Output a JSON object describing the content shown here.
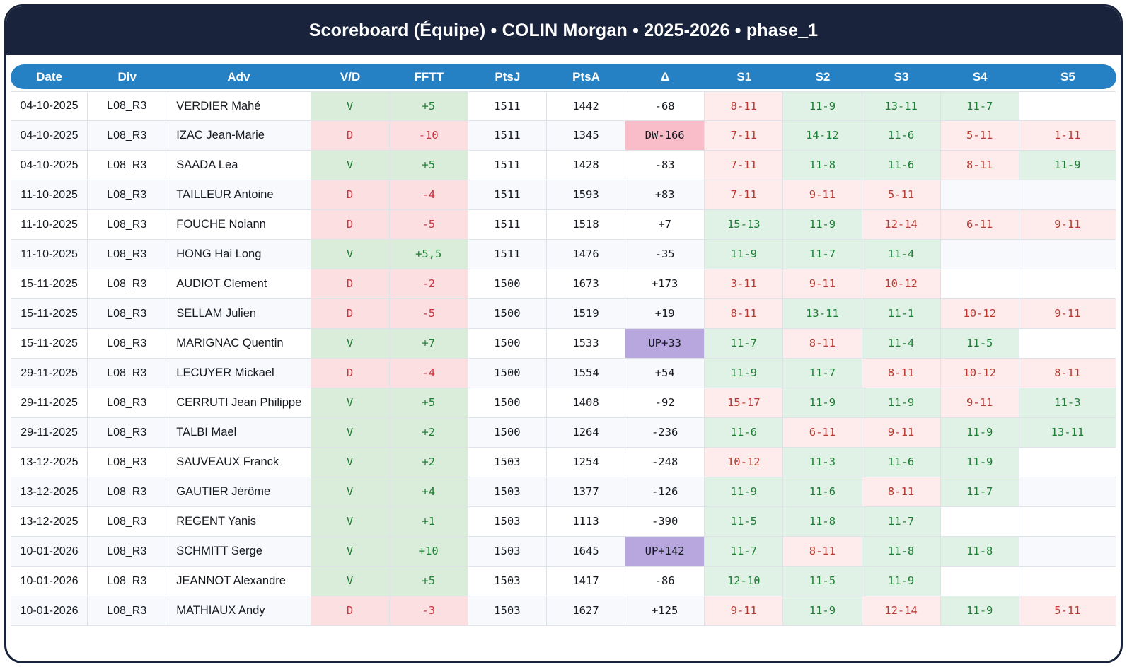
{
  "title": "Scoreboard (Équipe) • COLIN Morgan • 2025-2026 • phase_1",
  "colors": {
    "frame_navy": "#19233B",
    "header_blue": "#2581C4",
    "win_bg": "#d9edda",
    "loss_bg": "#fcdfe1",
    "set_win_bg": "#e0f1e6",
    "set_loss_bg": "#fdeceb",
    "win_text": "#1e7e34",
    "loss_text": "#cc3340",
    "delta_down_bg": "#f9bdc9",
    "delta_up_bg": "#b7a7de",
    "stripe_bg": "#f7f9fc"
  },
  "table": {
    "columns": [
      "Date",
      "Div",
      "Adv",
      "V/D",
      "FFTT",
      "PtsJ",
      "PtsA",
      "Δ",
      "S1",
      "S2",
      "S3",
      "S4",
      "S5"
    ],
    "rows": [
      {
        "date": "04-10-2025",
        "div": "L08_R3",
        "adv": "VERDIER Mahé",
        "vd": "V",
        "fftt": "+5",
        "ptsj": "1511",
        "ptsa": "1442",
        "delta": "-68",
        "delta_type": "plain",
        "sets": [
          {
            "v": "8-11",
            "r": "l"
          },
          {
            "v": "11-9",
            "r": "w"
          },
          {
            "v": "13-11",
            "r": "w"
          },
          {
            "v": "11-7",
            "r": "w"
          },
          null
        ]
      },
      {
        "date": "04-10-2025",
        "div": "L08_R3",
        "adv": "IZAC Jean-Marie",
        "vd": "D",
        "fftt": "-10",
        "ptsj": "1511",
        "ptsa": "1345",
        "delta": "DW-166",
        "delta_type": "down",
        "sets": [
          {
            "v": "7-11",
            "r": "l"
          },
          {
            "v": "14-12",
            "r": "w"
          },
          {
            "v": "11-6",
            "r": "w"
          },
          {
            "v": "5-11",
            "r": "l"
          },
          {
            "v": "1-11",
            "r": "l"
          }
        ]
      },
      {
        "date": "04-10-2025",
        "div": "L08_R3",
        "adv": "SAADA Lea",
        "vd": "V",
        "fftt": "+5",
        "ptsj": "1511",
        "ptsa": "1428",
        "delta": "-83",
        "delta_type": "plain",
        "sets": [
          {
            "v": "7-11",
            "r": "l"
          },
          {
            "v": "11-8",
            "r": "w"
          },
          {
            "v": "11-6",
            "r": "w"
          },
          {
            "v": "8-11",
            "r": "l"
          },
          {
            "v": "11-9",
            "r": "w"
          }
        ]
      },
      {
        "date": "11-10-2025",
        "div": "L08_R3",
        "adv": "TAILLEUR Antoine",
        "vd": "D",
        "fftt": "-4",
        "ptsj": "1511",
        "ptsa": "1593",
        "delta": "+83",
        "delta_type": "plain",
        "sets": [
          {
            "v": "7-11",
            "r": "l"
          },
          {
            "v": "9-11",
            "r": "l"
          },
          {
            "v": "5-11",
            "r": "l"
          },
          null,
          null
        ]
      },
      {
        "date": "11-10-2025",
        "div": "L08_R3",
        "adv": "FOUCHE Nolann",
        "vd": "D",
        "fftt": "-5",
        "ptsj": "1511",
        "ptsa": "1518",
        "delta": "+7",
        "delta_type": "plain",
        "sets": [
          {
            "v": "15-13",
            "r": "w"
          },
          {
            "v": "11-9",
            "r": "w"
          },
          {
            "v": "12-14",
            "r": "l"
          },
          {
            "v": "6-11",
            "r": "l"
          },
          {
            "v": "9-11",
            "r": "l"
          }
        ]
      },
      {
        "date": "11-10-2025",
        "div": "L08_R3",
        "adv": "HONG Hai Long",
        "vd": "V",
        "fftt": "+5,5",
        "ptsj": "1511",
        "ptsa": "1476",
        "delta": "-35",
        "delta_type": "plain",
        "sets": [
          {
            "v": "11-9",
            "r": "w"
          },
          {
            "v": "11-7",
            "r": "w"
          },
          {
            "v": "11-4",
            "r": "w"
          },
          null,
          null
        ]
      },
      {
        "date": "15-11-2025",
        "div": "L08_R3",
        "adv": "AUDIOT Clement",
        "vd": "D",
        "fftt": "-2",
        "ptsj": "1500",
        "ptsa": "1673",
        "delta": "+173",
        "delta_type": "plain",
        "sets": [
          {
            "v": "3-11",
            "r": "l"
          },
          {
            "v": "9-11",
            "r": "l"
          },
          {
            "v": "10-12",
            "r": "l"
          },
          null,
          null
        ]
      },
      {
        "date": "15-11-2025",
        "div": "L08_R3",
        "adv": "SELLAM Julien",
        "vd": "D",
        "fftt": "-5",
        "ptsj": "1500",
        "ptsa": "1519",
        "delta": "+19",
        "delta_type": "plain",
        "sets": [
          {
            "v": "8-11",
            "r": "l"
          },
          {
            "v": "13-11",
            "r": "w"
          },
          {
            "v": "11-1",
            "r": "w"
          },
          {
            "v": "10-12",
            "r": "l"
          },
          {
            "v": "9-11",
            "r": "l"
          }
        ]
      },
      {
        "date": "15-11-2025",
        "div": "L08_R3",
        "adv": "MARIGNAC Quentin",
        "vd": "V",
        "fftt": "+7",
        "ptsj": "1500",
        "ptsa": "1533",
        "delta": "UP+33",
        "delta_type": "up",
        "sets": [
          {
            "v": "11-7",
            "r": "w"
          },
          {
            "v": "8-11",
            "r": "l"
          },
          {
            "v": "11-4",
            "r": "w"
          },
          {
            "v": "11-5",
            "r": "w"
          },
          null
        ]
      },
      {
        "date": "29-11-2025",
        "div": "L08_R3",
        "adv": "LECUYER Mickael",
        "vd": "D",
        "fftt": "-4",
        "ptsj": "1500",
        "ptsa": "1554",
        "delta": "+54",
        "delta_type": "plain",
        "sets": [
          {
            "v": "11-9",
            "r": "w"
          },
          {
            "v": "11-7",
            "r": "w"
          },
          {
            "v": "8-11",
            "r": "l"
          },
          {
            "v": "10-12",
            "r": "l"
          },
          {
            "v": "8-11",
            "r": "l"
          }
        ]
      },
      {
        "date": "29-11-2025",
        "div": "L08_R3",
        "adv": "CERRUTI Jean Philippe",
        "vd": "V",
        "fftt": "+5",
        "ptsj": "1500",
        "ptsa": "1408",
        "delta": "-92",
        "delta_type": "plain",
        "sets": [
          {
            "v": "15-17",
            "r": "l"
          },
          {
            "v": "11-9",
            "r": "w"
          },
          {
            "v": "11-9",
            "r": "w"
          },
          {
            "v": "9-11",
            "r": "l"
          },
          {
            "v": "11-3",
            "r": "w"
          }
        ]
      },
      {
        "date": "29-11-2025",
        "div": "L08_R3",
        "adv": "TALBI Mael",
        "vd": "V",
        "fftt": "+2",
        "ptsj": "1500",
        "ptsa": "1264",
        "delta": "-236",
        "delta_type": "plain",
        "sets": [
          {
            "v": "11-6",
            "r": "w"
          },
          {
            "v": "6-11",
            "r": "l"
          },
          {
            "v": "9-11",
            "r": "l"
          },
          {
            "v": "11-9",
            "r": "w"
          },
          {
            "v": "13-11",
            "r": "w"
          }
        ]
      },
      {
        "date": "13-12-2025",
        "div": "L08_R3",
        "adv": "SAUVEAUX Franck",
        "vd": "V",
        "fftt": "+2",
        "ptsj": "1503",
        "ptsa": "1254",
        "delta": "-248",
        "delta_type": "plain",
        "sets": [
          {
            "v": "10-12",
            "r": "l"
          },
          {
            "v": "11-3",
            "r": "w"
          },
          {
            "v": "11-6",
            "r": "w"
          },
          {
            "v": "11-9",
            "r": "w"
          },
          null
        ]
      },
      {
        "date": "13-12-2025",
        "div": "L08_R3",
        "adv": "GAUTIER Jérôme",
        "vd": "V",
        "fftt": "+4",
        "ptsj": "1503",
        "ptsa": "1377",
        "delta": "-126",
        "delta_type": "plain",
        "sets": [
          {
            "v": "11-9",
            "r": "w"
          },
          {
            "v": "11-6",
            "r": "w"
          },
          {
            "v": "8-11",
            "r": "l"
          },
          {
            "v": "11-7",
            "r": "w"
          },
          null
        ]
      },
      {
        "date": "13-12-2025",
        "div": "L08_R3",
        "adv": "REGENT Yanis",
        "vd": "V",
        "fftt": "+1",
        "ptsj": "1503",
        "ptsa": "1113",
        "delta": "-390",
        "delta_type": "plain",
        "sets": [
          {
            "v": "11-5",
            "r": "w"
          },
          {
            "v": "11-8",
            "r": "w"
          },
          {
            "v": "11-7",
            "r": "w"
          },
          null,
          null
        ]
      },
      {
        "date": "10-01-2026",
        "div": "L08_R3",
        "adv": "SCHMITT Serge",
        "vd": "V",
        "fftt": "+10",
        "ptsj": "1503",
        "ptsa": "1645",
        "delta": "UP+142",
        "delta_type": "up",
        "sets": [
          {
            "v": "11-7",
            "r": "w"
          },
          {
            "v": "8-11",
            "r": "l"
          },
          {
            "v": "11-8",
            "r": "w"
          },
          {
            "v": "11-8",
            "r": "w"
          },
          null
        ]
      },
      {
        "date": "10-01-2026",
        "div": "L08_R3",
        "adv": "JEANNOT Alexandre",
        "vd": "V",
        "fftt": "+5",
        "ptsj": "1503",
        "ptsa": "1417",
        "delta": "-86",
        "delta_type": "plain",
        "sets": [
          {
            "v": "12-10",
            "r": "w"
          },
          {
            "v": "11-5",
            "r": "w"
          },
          {
            "v": "11-9",
            "r": "w"
          },
          null,
          null
        ]
      },
      {
        "date": "10-01-2026",
        "div": "L08_R3",
        "adv": "MATHIAUX Andy",
        "vd": "D",
        "fftt": "-3",
        "ptsj": "1503",
        "ptsa": "1627",
        "delta": "+125",
        "delta_type": "plain",
        "sets": [
          {
            "v": "9-11",
            "r": "l"
          },
          {
            "v": "11-9",
            "r": "w"
          },
          {
            "v": "12-14",
            "r": "l"
          },
          {
            "v": "11-9",
            "r": "w"
          },
          {
            "v": "5-11",
            "r": "l"
          }
        ]
      }
    ]
  }
}
